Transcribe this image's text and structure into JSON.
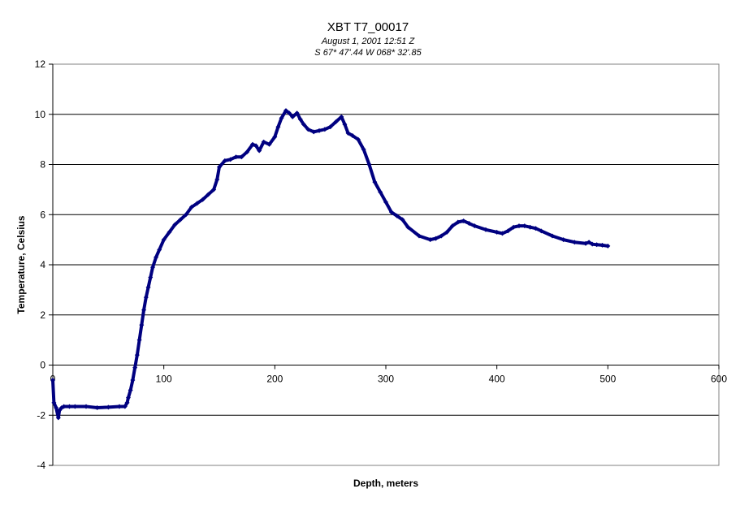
{
  "chart_data": {
    "type": "scatter",
    "title": "XBT T7_00017",
    "subtitle_lines": [
      "August 1, 2001  12:51 Z",
      "S 67* 47'.44  W 068* 32'.85"
    ],
    "xlabel": "Depth, meters",
    "ylabel": "Temperature, Celsius",
    "xlim": [
      0,
      600
    ],
    "ylim": [
      -4,
      12
    ],
    "x_ticks": [
      0,
      100,
      200,
      300,
      400,
      500,
      600
    ],
    "y_ticks": [
      -4,
      -2,
      0,
      2,
      4,
      6,
      8,
      10,
      12
    ],
    "grid": "horizontal",
    "legend": "none",
    "series_color": "#000080",
    "series": [
      {
        "x": [
          0,
          1,
          3,
          5,
          6,
          8,
          10,
          15,
          20,
          30,
          40,
          50,
          60,
          65,
          67,
          68,
          70,
          72,
          74,
          76,
          78,
          80,
          82,
          84,
          86,
          88,
          90,
          93,
          96,
          100,
          105,
          110,
          115,
          120,
          125,
          130,
          135,
          140,
          145,
          148,
          150,
          155,
          160,
          165,
          170,
          175,
          180,
          183,
          186,
          190,
          195,
          200,
          203,
          206,
          210,
          213,
          216,
          220,
          223,
          226,
          230,
          235,
          240,
          245,
          250,
          255,
          260,
          263,
          266,
          270,
          275,
          280,
          285,
          290,
          295,
          300,
          305,
          310,
          315,
          320,
          330,
          340,
          345,
          350,
          355,
          360,
          365,
          370,
          375,
          380,
          390,
          400,
          405,
          410,
          415,
          420,
          425,
          430,
          435,
          440,
          450,
          460,
          470,
          480,
          483,
          486,
          490,
          495,
          500
        ],
        "y": [
          -0.6,
          -1.5,
          -1.7,
          -2.1,
          -1.8,
          -1.7,
          -1.65,
          -1.65,
          -1.65,
          -1.65,
          -1.7,
          -1.68,
          -1.65,
          -1.65,
          -1.5,
          -1.3,
          -1.0,
          -0.6,
          -0.1,
          0.4,
          1.0,
          1.6,
          2.2,
          2.7,
          3.1,
          3.5,
          3.9,
          4.3,
          4.6,
          5.0,
          5.3,
          5.6,
          5.8,
          6.0,
          6.3,
          6.45,
          6.6,
          6.8,
          7.0,
          7.4,
          7.9,
          8.15,
          8.2,
          8.3,
          8.3,
          8.5,
          8.8,
          8.75,
          8.55,
          8.9,
          8.8,
          9.1,
          9.5,
          9.85,
          10.15,
          10.05,
          9.9,
          10.05,
          9.8,
          9.6,
          9.4,
          9.3,
          9.35,
          9.4,
          9.5,
          9.7,
          9.9,
          9.6,
          9.25,
          9.15,
          9.0,
          8.6,
          8.0,
          7.3,
          6.9,
          6.5,
          6.1,
          5.95,
          5.8,
          5.5,
          5.15,
          5.0,
          5.05,
          5.15,
          5.3,
          5.55,
          5.7,
          5.75,
          5.65,
          5.55,
          5.4,
          5.3,
          5.25,
          5.35,
          5.5,
          5.55,
          5.55,
          5.5,
          5.45,
          5.35,
          5.15,
          5.0,
          4.9,
          4.85,
          4.9,
          4.82,
          4.8,
          4.78,
          4.75
        ]
      }
    ]
  }
}
